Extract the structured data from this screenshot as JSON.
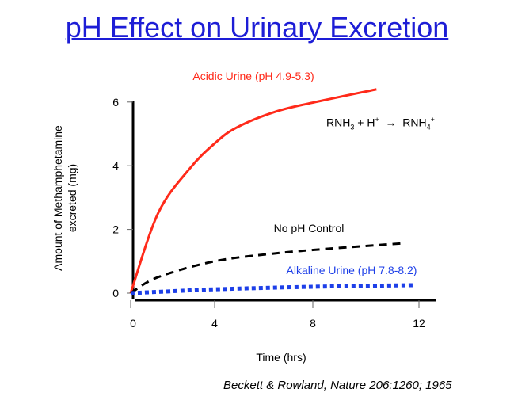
{
  "title": "pH Effect on Urinary Excretion",
  "citation": "Beckett & Rowland, Nature 206:1260; 1965",
  "equation": {
    "lhs": "RNH",
    "lhs_sub": "3",
    "plus": " + H",
    "plus_sup": "+",
    "arrow": "→",
    "rhs": "RNH",
    "rhs_sub": "4",
    "rhs_sup": "+"
  },
  "chart_data": {
    "type": "line",
    "xlabel": "Time (hrs)",
    "ylabel": "Amount of Methamphetamine excreted (mg)",
    "ylabel_lines": [
      "Amount of Methamphetamine",
      "excreted (mg)"
    ],
    "xlim": [
      0,
      12
    ],
    "ylim": [
      0,
      6
    ],
    "xticks": [
      "0",
      "4",
      "8",
      "12"
    ],
    "yticks": [
      "0",
      "2",
      "4",
      "6"
    ],
    "grid": false,
    "series": [
      {
        "name": "Acidic Urine (pH 4.9-5.3)",
        "color": "#ff2a1a",
        "style": "solid",
        "x": [
          0,
          1.3,
          2.8,
          4,
          4.9,
          6.5,
          8.1,
          10.4
        ],
        "y": [
          0,
          2.5,
          3.9,
          4.7,
          5.2,
          5.7,
          6.0,
          6.4
        ]
      },
      {
        "name": "No pH Control",
        "color": "#000000",
        "style": "dashed",
        "x": [
          0,
          1.3,
          4,
          6.5,
          9,
          11.5
        ],
        "y": [
          0,
          0.5,
          1.0,
          1.25,
          1.42,
          1.57
        ]
      },
      {
        "name": "Alkaline Urine (pH 7.8-8.2)",
        "color": "#1d3fe8",
        "style": "dotted",
        "x": [
          0,
          2,
          4,
          8,
          11.8
        ],
        "y": [
          0,
          0.06,
          0.12,
          0.2,
          0.25
        ]
      }
    ]
  }
}
